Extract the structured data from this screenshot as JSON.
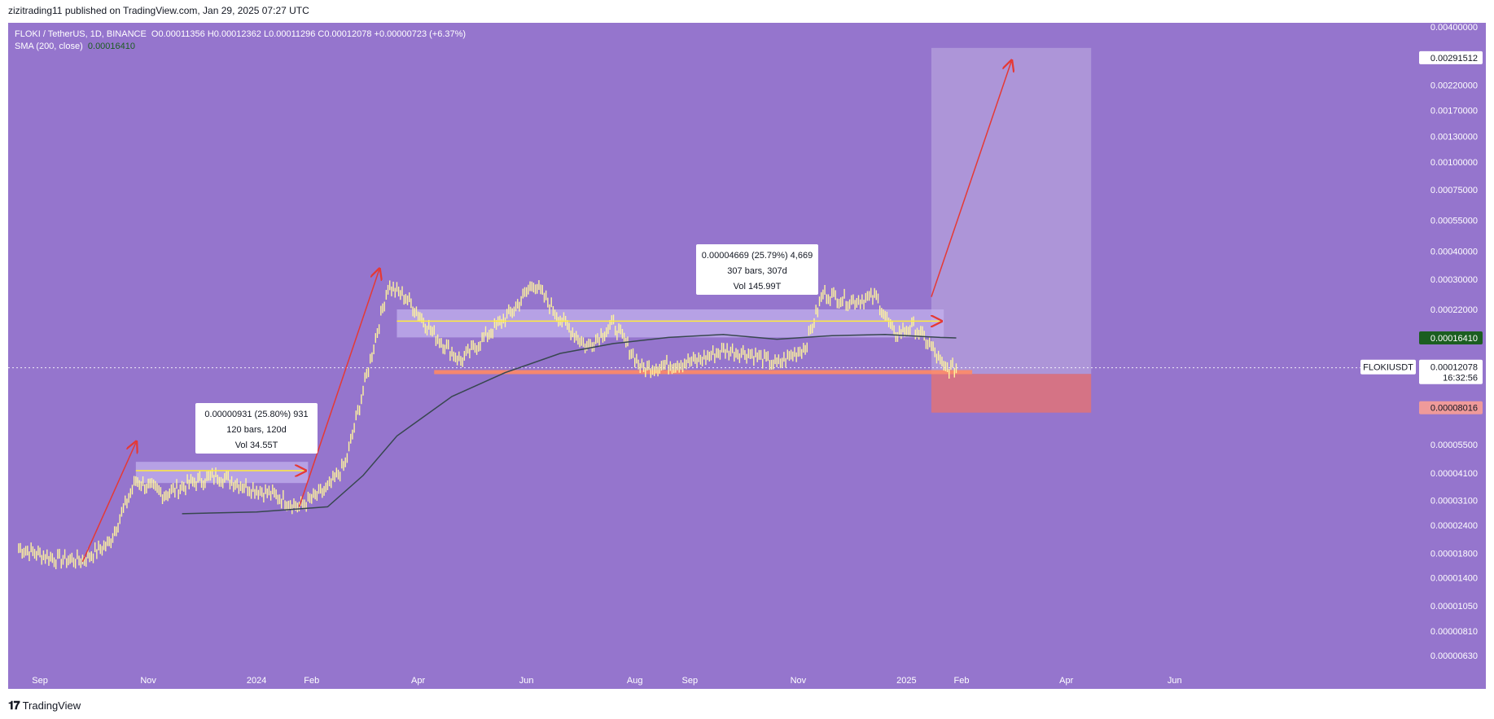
{
  "header": {
    "published": "zizitrading11 published on TradingView.com, Jan 29, 2025 07:27 UTC"
  },
  "legend": {
    "symbol": "FLOKI / TetherUS, 1D, BINANCE",
    "ohlc": "O0.00011356 H0.00012362 L0.00011296 C0.00012078 +0.00000723 (+6.37%)",
    "sma_label": "SMA (200, close)",
    "sma_value": "0.00016410"
  },
  "footer": {
    "brand": "TradingView"
  },
  "chart_data": {
    "type": "line",
    "title": "FLOKI / TetherUS, 1D, BINANCE",
    "y_scale": "log",
    "ylim": [
      5.5e-06,
      0.004
    ],
    "y_ticks": [
      "0.00400000",
      "0.00291512",
      "0.00220000",
      "0.00170000",
      "0.00130000",
      "0.00100000",
      "0.00075000",
      "0.00055000",
      "0.00040000",
      "0.00030000",
      "0.00022000",
      "0.00016410",
      "0.00012078",
      "0.00011341",
      "0.00008016",
      "0.00005500",
      "0.00004100",
      "0.00003100",
      "0.00002400",
      "0.00001800",
      "0.00001400",
      "0.00001050",
      "0.00000810",
      "0.00000630"
    ],
    "x_ticks": [
      "Sep",
      "Nov",
      "2024",
      "Feb",
      "Apr",
      "Jun",
      "Aug",
      "Sep",
      "Nov",
      "2025",
      "Feb",
      "Apr",
      "Jun"
    ],
    "price_series": {
      "name": "FLOKIUSDT",
      "x": [
        "2023-08-20",
        "2023-09-10",
        "2023-09-25",
        "2023-10-10",
        "2023-10-25",
        "2023-11-10",
        "2023-11-25",
        "2023-12-10",
        "2023-12-25",
        "2024-01-10",
        "2024-01-25",
        "2024-02-10",
        "2024-02-20",
        "2024-03-05",
        "2024-03-15",
        "2024-03-25",
        "2024-04-10",
        "2024-04-25",
        "2024-05-10",
        "2024-05-25",
        "2024-06-05",
        "2024-06-20",
        "2024-07-05",
        "2024-07-20",
        "2024-08-05",
        "2024-08-20",
        "2024-09-05",
        "2024-09-20",
        "2024-10-05",
        "2024-10-20",
        "2024-11-05",
        "2024-11-15",
        "2024-11-30",
        "2024-12-15",
        "2024-12-25",
        "2025-01-05",
        "2025-01-15",
        "2025-01-22",
        "2025-01-29"
      ],
      "y": [
        1.9e-05,
        1.7e-05,
        1.68e-05,
        2e-05,
        3.8e-05,
        3.3e-05,
        3.7e-05,
        4e-05,
        3.6e-05,
        3.3e-05,
        2.9e-05,
        3.5e-05,
        4.5e-05,
        0.00013,
        0.00028,
        0.00025,
        0.00017,
        0.00013,
        0.00017,
        0.00022,
        0.00029,
        0.0002,
        0.00015,
        0.00019,
        0.00012,
        0.000125,
        0.00013,
        0.000145,
        0.00014,
        0.000125,
        0.00015,
        0.00026,
        0.00024,
        0.00025,
        0.00017,
        0.000185,
        0.00015,
        0.00012,
        0.0001208
      ]
    },
    "sma_series": {
      "name": "SMA (200, close)",
      "x": [
        "2023-11-20",
        "2024-01-01",
        "2024-02-10",
        "2024-03-01",
        "2024-03-20",
        "2024-04-20",
        "2024-05-20",
        "2024-06-20",
        "2024-07-20",
        "2024-08-20",
        "2024-09-20",
        "2024-10-20",
        "2024-11-20",
        "2024-12-20",
        "2025-01-20",
        "2025-01-29"
      ],
      "y": [
        2.7e-05,
        2.75e-05,
        2.9e-05,
        4e-05,
        6e-05,
        9e-05,
        0.000115,
        0.00014,
        0.000155,
        0.000165,
        0.00017,
        0.000162,
        0.000168,
        0.00017,
        0.000165,
        0.0001641
      ]
    },
    "measurements": [
      {
        "line1": "0.00000931 (25.80%) 931",
        "line2": "120 bars, 120d",
        "line3": "Vol 34.55T"
      },
      {
        "line1": "0.00004669 (25.79%) 4,669",
        "line2": "307 bars, 307d",
        "line3": "Vol 145.99T"
      }
    ],
    "position": {
      "target": 0.00291512,
      "entry": 0.00011341,
      "stop": 8.016e-05
    },
    "price_tag": {
      "symbol": "FLOKIUSDT",
      "price": "0.00012078",
      "countdown": "16:32:56"
    },
    "sma_tag": "0.00016410",
    "colors": {
      "background": "#9575cd",
      "candles": "#fff59d",
      "sma": "#37474f",
      "arrow": "#e53935",
      "target_zone": "#b39ddb",
      "stop_zone": "#e57373",
      "support": "#ff8a65",
      "range_box": "#c5b3ef"
    },
    "grid": false
  }
}
